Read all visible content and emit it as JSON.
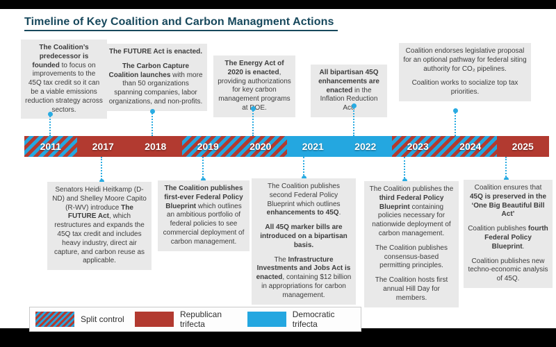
{
  "title": "Timeline of Key Coalition and Carbon Managment Actions",
  "colors": {
    "republican": "#b23a30",
    "democratic": "#24a7e0",
    "connector": "#29abe2",
    "box_bg": "#e9e9e9",
    "title": "#17485c",
    "text": "#3c3c3c"
  },
  "timeline": {
    "years": [
      "2011",
      "2017",
      "2018",
      "2019",
      "2020",
      "2021",
      "2022",
      "2023",
      "2024",
      "2025"
    ],
    "segments": [
      {
        "control": "split",
        "years": [
          "2011"
        ]
      },
      {
        "control": "republican",
        "years": [
          "2017",
          "2018"
        ]
      },
      {
        "control": "split",
        "years": [
          "2019",
          "2020"
        ]
      },
      {
        "control": "democratic",
        "years": [
          "2021",
          "2022"
        ]
      },
      {
        "control": "split",
        "years": [
          "2023",
          "2024"
        ]
      },
      {
        "control": "republican",
        "years": [
          "2025"
        ]
      }
    ]
  },
  "events_top": [
    {
      "anchor_year": "2011",
      "content": [
        [
          {
            "t": "The Coalition’s predecessor is founded",
            "b": true
          },
          {
            "t": " to focus on improvements to the 45Q tax credit so it can be a viable emissions reduction strategy across sectors.",
            "b": false
          }
        ]
      ]
    },
    {
      "anchor_year": "2017-2018",
      "content": [
        [
          {
            "t": "The FUTURE Act is enacted.",
            "b": true
          }
        ],
        [
          {
            "t": "The Carbon Capture Coalition launches",
            "b": true
          },
          {
            "t": " with more than 50 organizations spanning companies, labor organizations, and non-profits.",
            "b": false
          }
        ]
      ]
    },
    {
      "anchor_year": "2020",
      "content": [
        [
          {
            "t": "The Energy Act of 2020 is enacted",
            "b": true
          },
          {
            "t": ", providing authorizations for key carbon management programs at DOE.",
            "b": false
          }
        ]
      ]
    },
    {
      "anchor_year": "2022",
      "content": [
        [
          {
            "t": "All bipartisan 45Q enhancements are enacted",
            "b": true
          },
          {
            "t": " in the Inflation Reduction Act.",
            "b": false
          }
        ]
      ]
    },
    {
      "anchor_year": "2024",
      "content": [
        [
          {
            "t": "Coalition endorses legislative proposal for an optional pathway for federal siting authority for CO₂ pipelines.",
            "b": false
          }
        ],
        [
          {
            "t": "Coalition works to socialize top tax priorities.",
            "b": false
          }
        ]
      ]
    }
  ],
  "events_bottom": [
    {
      "anchor_year": "2017",
      "content": [
        [
          {
            "t": "Senators Heidi Heitkamp (D-ND) and Shelley Moore Capito (R-WV) introduce ",
            "b": false
          },
          {
            "t": "The FUTURE Act",
            "b": true
          },
          {
            "t": ", which restructures and expands the 45Q tax credit and includes heavy industry, direct air capture, and carbon reuse as applicable.",
            "b": false
          }
        ]
      ]
    },
    {
      "anchor_year": "2019",
      "content": [
        [
          {
            "t": "The Coalition publishes first-ever Federal Policy Blueprint",
            "b": true
          },
          {
            "t": " which outlines an ambitious portfolio of federal policies to see commercial deployment of carbon management.",
            "b": false
          }
        ]
      ]
    },
    {
      "anchor_year": "2021",
      "content": [
        [
          {
            "t": "The Coalition publishes second Federal Policy Blueprint which outlines ",
            "b": false
          },
          {
            "t": "enhancements to 45Q",
            "b": true
          },
          {
            "t": ".",
            "b": false
          }
        ],
        [
          {
            "t": "All 45Q marker bills are introduced on a bipartisan basis.",
            "b": true
          }
        ],
        [
          {
            "t": "The ",
            "b": false
          },
          {
            "t": "Infrastructure Investments and Jobs Act is enacted",
            "b": true
          },
          {
            "t": ", containing $12 billion in appropriations for carbon management.",
            "b": false
          }
        ]
      ]
    },
    {
      "anchor_year": "2023",
      "content": [
        [
          {
            "t": "The Coalition publishes the ",
            "b": false
          },
          {
            "t": "third Federal Policy Blueprint",
            "b": true
          },
          {
            "t": " containing policies necessary for nationwide deployment of carbon management.",
            "b": false
          }
        ],
        [
          {
            "t": "The Coalition publishes consensus-based permitting principles.",
            "b": false
          }
        ],
        [
          {
            "t": "The Coalition hosts first annual Hill Day for members.",
            "b": false
          }
        ]
      ]
    },
    {
      "anchor_year": "2025",
      "content": [
        [
          {
            "t": "Coalition ensures that ",
            "b": false
          },
          {
            "t": "45Q is preserved in the ‘One Big Beautiful Bill Act’",
            "b": true
          }
        ],
        [
          {
            "t": "Coalition publishes ",
            "b": false
          },
          {
            "t": "fourth Federal Policy Blueprint",
            "b": true
          },
          {
            "t": ".",
            "b": false
          }
        ],
        [
          {
            "t": "Coalition publishes new techno-economic analysis of 45Q.",
            "b": false
          }
        ]
      ]
    }
  ],
  "legend": {
    "items": [
      {
        "label": "Split control",
        "type": "split"
      },
      {
        "label": "Republican trifecta",
        "type": "republican"
      },
      {
        "label": "Democratic trifecta",
        "type": "democratic"
      }
    ]
  }
}
